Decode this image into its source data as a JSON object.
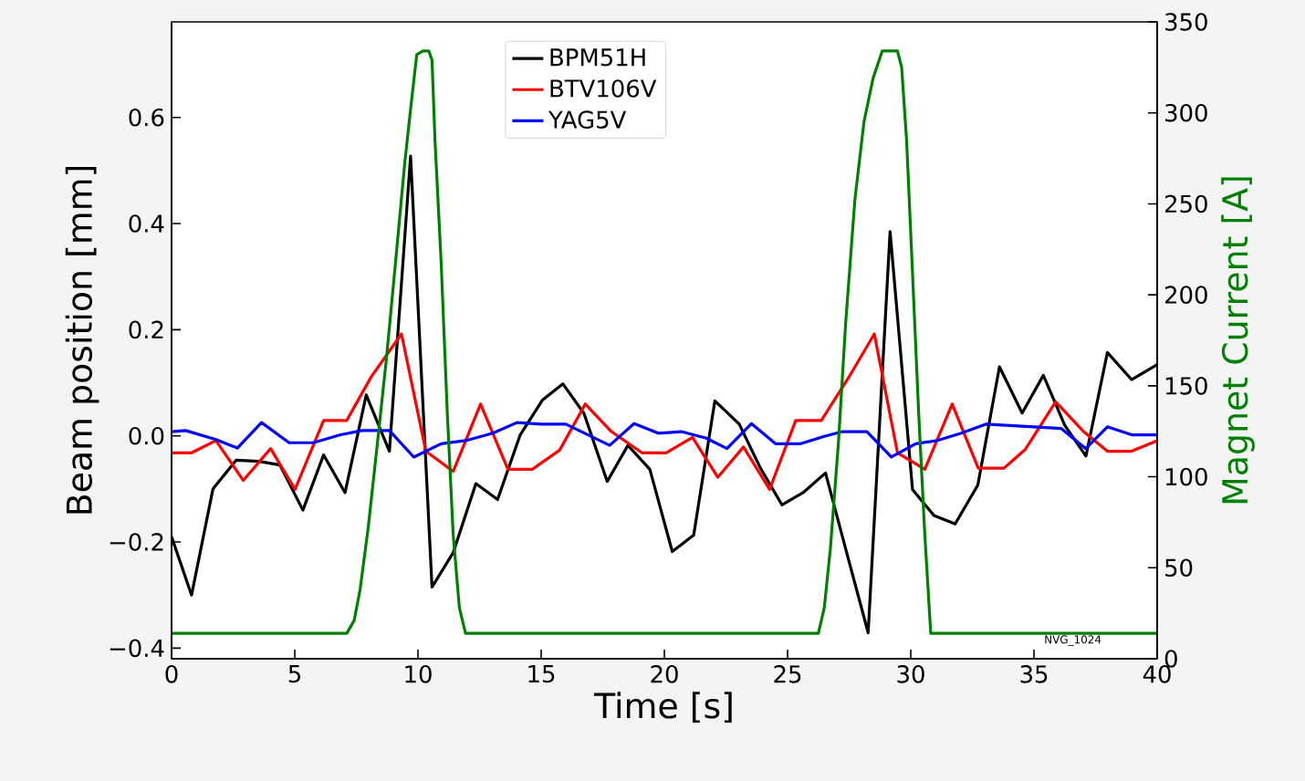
{
  "chart_data": {
    "type": "line",
    "xlabel": "Time [s]",
    "ylabel": "Beam position [mm]",
    "y2label": "Magnet Current [A]",
    "xlim": [
      0,
      40
    ],
    "xticks": [
      0,
      5,
      10,
      15,
      20,
      25,
      30,
      35,
      40
    ],
    "ylim": [
      -0.42,
      0.78
    ],
    "yticks": [
      {
        "value": -0.4,
        "label": "−0.4"
      },
      {
        "value": -0.2,
        "label": "−0.2"
      },
      {
        "value": 0,
        "label": "0.0"
      },
      {
        "value": 0.2,
        "label": "0.2"
      },
      {
        "value": 0.4,
        "label": "0.4"
      },
      {
        "value": 0.6,
        "label": "0.6"
      }
    ],
    "y2lim": [
      0,
      350
    ],
    "y2ticks": [
      0,
      50,
      100,
      150,
      200,
      250,
      300,
      350
    ],
    "legend": "top",
    "grid": false,
    "marker": "none",
    "line_style": "solid",
    "annotations": [
      "NVG_1024"
    ],
    "series": [
      {
        "name": "BPM51H",
        "color": "#000000",
        "x": [
          0,
          0.81,
          1.68,
          2.62,
          3.53,
          4.4,
          5.33,
          6.17,
          7.04,
          7.9,
          8.84,
          9.7,
          10.57,
          11.43,
          12.35,
          13.23,
          14.15,
          15.06,
          15.88,
          16.74,
          17.68,
          18.52,
          19.41,
          20.32,
          21.19,
          22.05,
          23.04,
          23.9,
          24.77,
          25.63,
          26.54,
          27.41,
          28.27,
          29.16,
          30.07,
          30.94,
          31.8,
          32.72,
          33.6,
          34.52,
          35.38,
          36.25,
          37.11,
          37.98,
          38.96,
          40
        ],
        "values": [
          -0.19,
          -0.3,
          -0.1,
          -0.046,
          -0.048,
          -0.055,
          -0.14,
          -0.036,
          -0.107,
          0.077,
          -0.029,
          0.527,
          -0.285,
          -0.22,
          -0.09,
          -0.12,
          0.002,
          0.068,
          0.098,
          0.042,
          -0.086,
          -0.018,
          -0.063,
          -0.218,
          -0.187,
          0.066,
          0.022,
          -0.061,
          -0.13,
          -0.107,
          -0.07,
          -0.222,
          -0.371,
          0.385,
          -0.101,
          -0.15,
          -0.166,
          -0.093,
          0.13,
          0.043,
          0.114,
          0.02,
          -0.038,
          0.157,
          0.106,
          0.134
        ]
      },
      {
        "name": "BTV106V",
        "color": "#ff0000",
        "x": [
          0,
          0.81,
          1.8,
          2.91,
          4.02,
          5.01,
          6.17,
          7.11,
          8.1,
          9.33,
          10.32,
          11.43,
          12.54,
          13.65,
          14.64,
          15.75,
          16.79,
          17.85,
          19.09,
          20.07,
          21.14,
          22.17,
          23.21,
          24.27,
          25.33,
          26.37,
          27.48,
          28.52,
          29.46,
          30.57,
          31.68,
          32.74,
          33.78,
          34.64,
          35.88,
          36.99,
          37.98,
          38.96,
          40
        ],
        "values": [
          -0.032,
          -0.032,
          -0.009,
          -0.084,
          -0.024,
          -0.101,
          0.029,
          0.029,
          0.111,
          0.192,
          -0.029,
          -0.067,
          0.06,
          -0.063,
          -0.063,
          -0.027,
          0.06,
          0.008,
          -0.032,
          -0.032,
          -0.003,
          -0.078,
          -0.021,
          -0.101,
          0.029,
          0.029,
          0.11,
          0.192,
          -0.032,
          -0.063,
          0.06,
          -0.061,
          -0.061,
          -0.026,
          0.064,
          0.009,
          -0.029,
          -0.029,
          -0.009
        ]
      },
      {
        "name": "YAG5V",
        "color": "#0000ff",
        "x": [
          0,
          0.57,
          1.8,
          2.67,
          3.65,
          4.77,
          5.75,
          6.86,
          7.73,
          8.84,
          9.83,
          10.94,
          11.93,
          13.04,
          14.02,
          15.0,
          16.0,
          17.78,
          18.77,
          19.75,
          20.69,
          21.68,
          22.54,
          23.53,
          24.52,
          25.51,
          26.49,
          27.23,
          28.22,
          29.21,
          30.2,
          31.06,
          32.05,
          33.04,
          35.0,
          36.1,
          37.1,
          37.98,
          38.96,
          40
        ],
        "values": [
          0.008,
          0.01,
          -0.007,
          -0.023,
          0.025,
          -0.013,
          -0.013,
          0.002,
          0.01,
          0.01,
          -0.04,
          -0.015,
          -0.009,
          0.005,
          0.025,
          0.022,
          0.022,
          -0.018,
          0.023,
          0.005,
          0.008,
          -0.004,
          -0.024,
          0.023,
          -0.015,
          -0.015,
          -0.001,
          0.008,
          0.008,
          -0.04,
          -0.015,
          -0.009,
          0.005,
          0.022,
          0.017,
          0.014,
          -0.024,
          0.017,
          0.002,
          0.002
        ]
      },
      {
        "color": "#008000",
        "axis": "y2",
        "x": [
          0,
          7.11,
          7.41,
          7.65,
          7.98,
          8.35,
          8.72,
          9.09,
          9.46,
          9.7,
          9.95,
          10.2,
          10.44,
          10.57,
          10.69,
          10.94,
          11.19,
          11.43,
          11.68,
          11.93,
          26.25,
          26.49,
          26.74,
          27.06,
          27.36,
          27.73,
          28.1,
          28.47,
          28.84,
          29.46,
          29.63,
          29.83,
          30.07,
          30.32,
          30.57,
          30.81,
          40
        ],
        "values": [
          14,
          14,
          21,
          38,
          72,
          118,
          165,
          218,
          272,
          302,
          332,
          334,
          334,
          329,
          285,
          218,
          135,
          68,
          28,
          14,
          14,
          28,
          61,
          118,
          185,
          252,
          295,
          319,
          334,
          334,
          325,
          285,
          212,
          135,
          68,
          14,
          14
        ]
      }
    ]
  }
}
